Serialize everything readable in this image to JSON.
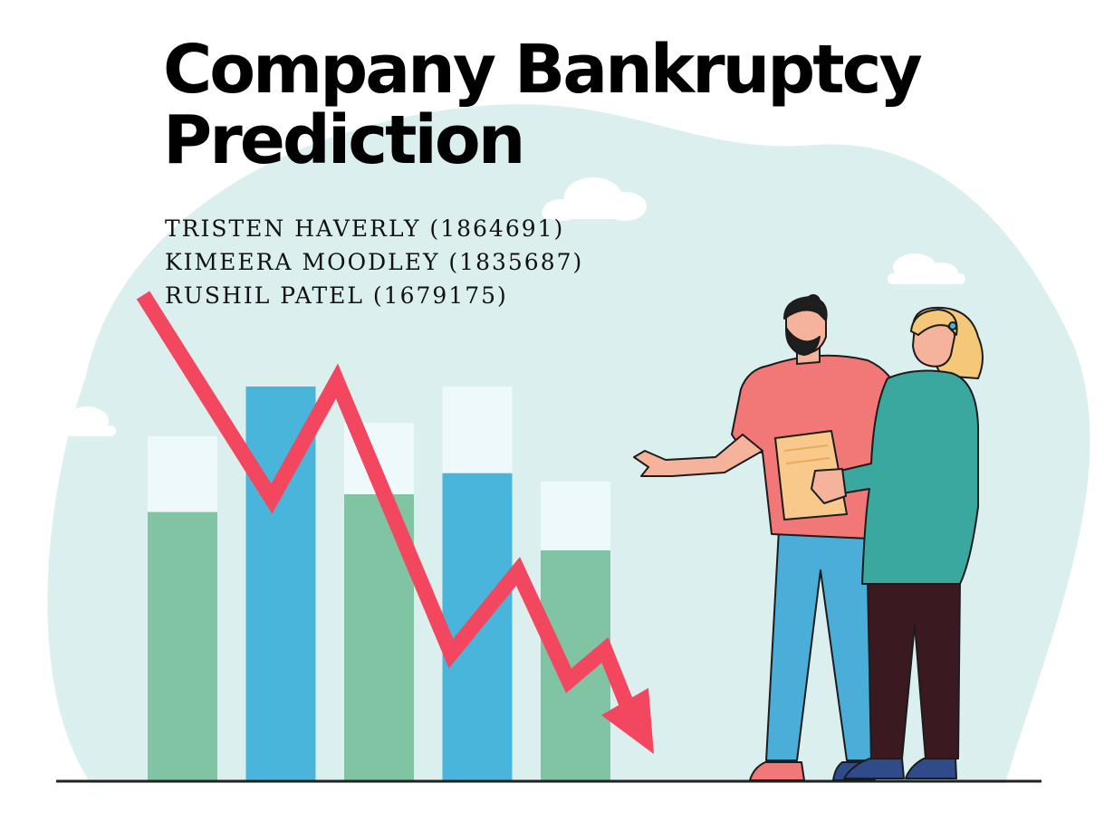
{
  "title": {
    "line1": "Company Bankruptcy",
    "line2": "Prediction"
  },
  "authors": [
    "TRISTEN HAVERLY (1864691)",
    "KIMEERA MOODLEY (1835687)",
    "RUSHIL PATEL (1679175)"
  ],
  "illustration": {
    "bar_levels": [
      0.76,
      0.87,
      0.79,
      0.87,
      0.66
    ],
    "bar_fill_fractions": [
      0.78,
      1.0,
      0.8,
      0.78,
      0.77
    ],
    "bar_colors": [
      "#80c4a4",
      "#4ab5da",
      "#80c4a4",
      "#4ab5da",
      "#80c4a4"
    ],
    "bar_top_color": "#eef9fb",
    "trend_arrow_color": "#f2475f",
    "backdrop_color": "#dcefef",
    "man_shirt_color": "#f27777",
    "man_pants_color": "#4aaed8",
    "woman_sweater_color": "#3aa89e",
    "woman_pants_color": "#3a1a20",
    "clipboard_color": "#f8c98a"
  }
}
